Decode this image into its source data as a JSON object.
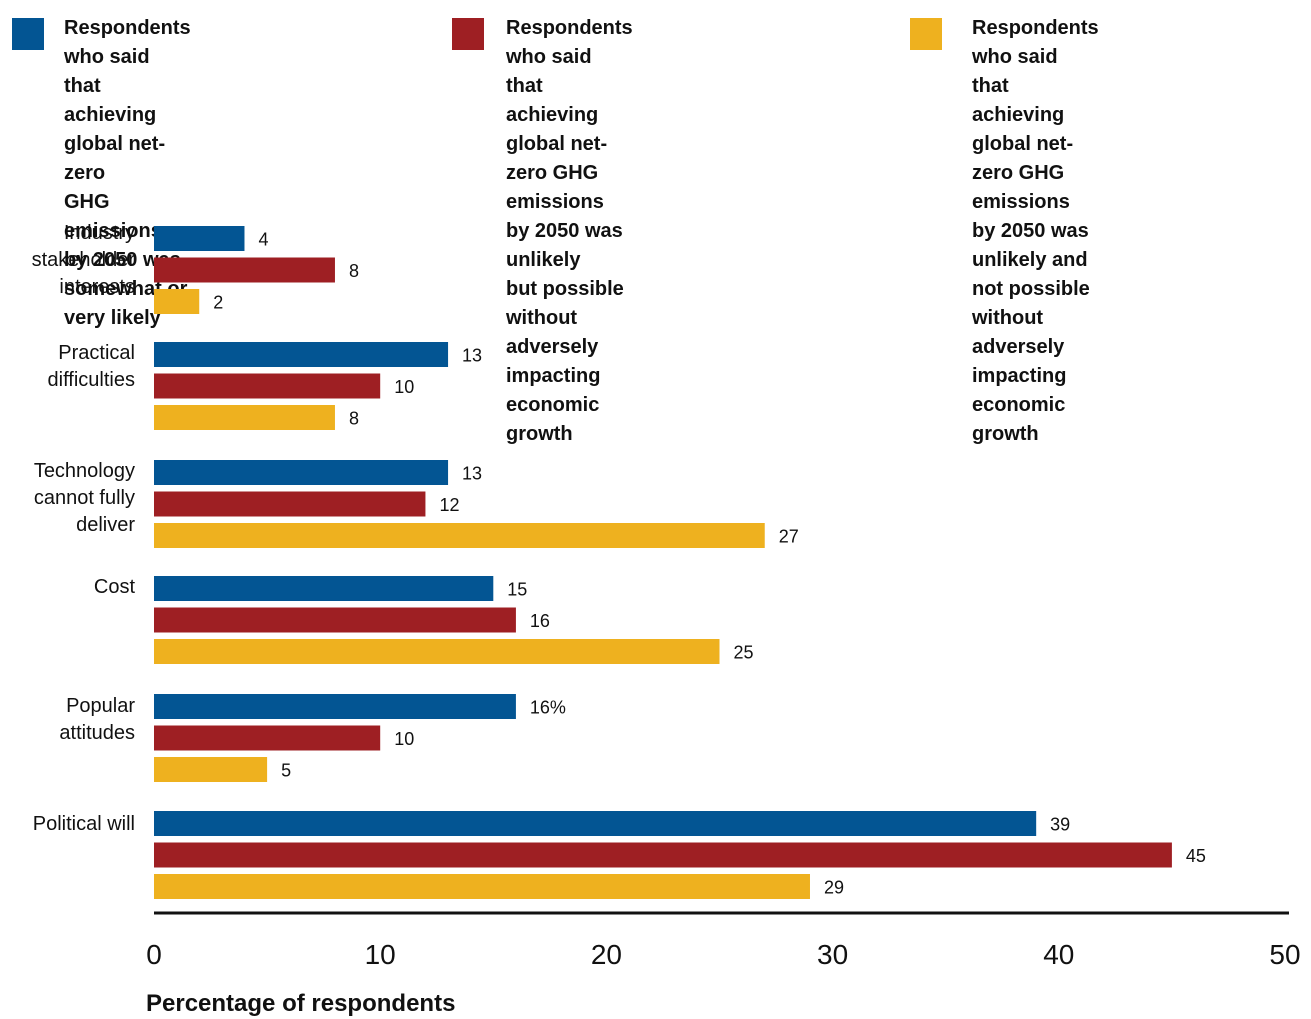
{
  "colors": {
    "blue": "#035593",
    "red": "#9e1f23",
    "yellow": "#eeb11f"
  },
  "legend": [
    {
      "label": "Respondents who said that\nachieving global net-zero\nGHG emissions by 2050 was\nsomewhat or very likely",
      "color": "#035593"
    },
    {
      "label": "Respondents who said that\nachieving global net-zero GHG\nemissions by 2050 was unlikely\nbut possible without adversely\nimpacting economic growth",
      "color": "#9e1f23"
    },
    {
      "label": "Respondents who said that\nachieving global net-zero GHG\nemissions by 2050 was\nunlikely and not possible\nwithout adversely impacting\neconomic growth",
      "color": "#eeb11f"
    }
  ],
  "chart_data": {
    "type": "bar",
    "orientation": "horizontal",
    "categories": [
      "Industry\nstakeholder\ninterests",
      "Practical\ndifficulties",
      "Technology\ncannot fully\ndeliver",
      "Cost",
      "Popular\nattitudes",
      "Political will"
    ],
    "series": [
      {
        "name": "Respondents who said that achieving global net-zero GHG emissions by 2050 was somewhat or very likely",
        "color": "#035593",
        "values": [
          4,
          13,
          13,
          15,
          16,
          39
        ],
        "labels": [
          "4",
          "13",
          "13",
          "15",
          "16%",
          "39"
        ]
      },
      {
        "name": "Respondents who said that achieving global net-zero GHG emissions by 2050 was unlikely but possible without adversely impacting economic growth",
        "color": "#9e1f23",
        "values": [
          8,
          10,
          12,
          16,
          10,
          45
        ],
        "labels": [
          "8",
          "10",
          "12",
          "16",
          "10",
          "45"
        ]
      },
      {
        "name": "Respondents who said that achieving global net-zero GHG emissions by 2050 was unlikely and not possible without adversely impacting economic growth",
        "color": "#eeb11f",
        "values": [
          2,
          8,
          27,
          25,
          5,
          29
        ],
        "labels": [
          "2",
          "8",
          "27",
          "25",
          "5",
          "29"
        ]
      }
    ],
    "xlabel": "Percentage of respondents",
    "xlim": [
      0,
      50
    ],
    "xticks": [
      "0",
      "10",
      "20",
      "30",
      "40",
      "50"
    ],
    "grid": false,
    "legend": "top"
  }
}
